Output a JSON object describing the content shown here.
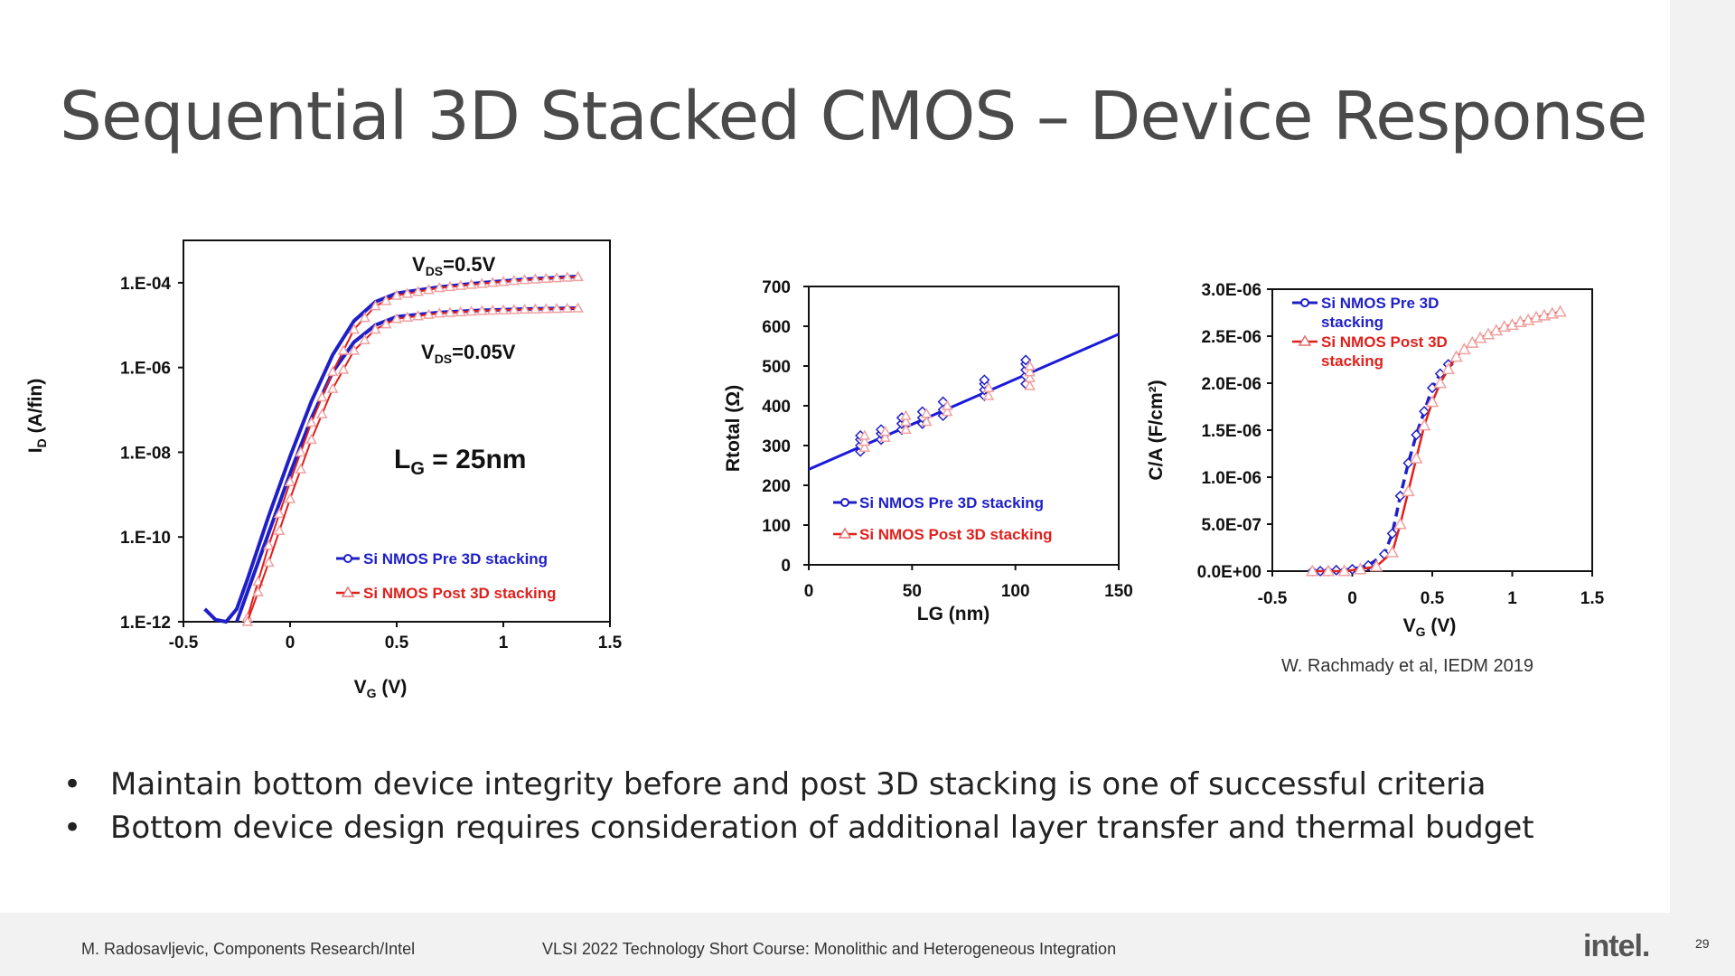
{
  "slide": {
    "title": "Sequential 3D Stacked CMOS – Device Response",
    "citation": "W. Rachmady et al, IEDM 2019",
    "bullets": [
      "Maintain bottom device integrity before and post 3D stacking is one of successful criteria",
      "Bottom device design requires consideration of additional layer transfer and thermal budget"
    ],
    "footer": {
      "author": "M. Radosavljevic, Components Research/Intel",
      "course": "VLSI 2022 Technology Short Course: Monolithic and Heterogeneous Integration",
      "logo": "intel.",
      "page_number": "29"
    },
    "colors": {
      "pre": "#1f1fc8",
      "post": "#e0201c",
      "post_marker": "#f0a0a0"
    }
  },
  "chart_data": [
    {
      "type": "line",
      "xlabel": "VG (V)",
      "ylabel": "ID (A/fin)",
      "x_ticks": [
        "-0.5",
        "0",
        "0.5",
        "1",
        "1.5"
      ],
      "y_ticks": [
        "1.E-12",
        "1.E-10",
        "1.E-08",
        "1.E-06",
        "1.E-04"
      ],
      "xlim": [
        -0.5,
        1.5
      ],
      "ylim_log10": [
        -12,
        -3
      ],
      "y_scale": "log",
      "annotations": {
        "vds_high": "VDS=0.5V",
        "vds_low": "VDS=0.05V",
        "lg": "LG = 25nm"
      },
      "legend": {
        "pre": "Si NMOS Pre 3D stacking",
        "post": "Si NMOS Post 3D stacking",
        "position": "bottom-right"
      },
      "series": [
        {
          "name": "Si NMOS Pre 3D stacking",
          "condition": "VDS=0.5V",
          "x": [
            -0.4,
            -0.35,
            -0.3,
            -0.25,
            -0.2,
            -0.1,
            0,
            0.1,
            0.2,
            0.3,
            0.4,
            0.5,
            0.7,
            0.9,
            1.1,
            1.35
          ],
          "log10_y": [
            -11.7,
            -11.95,
            -12.0,
            -11.7,
            -11.0,
            -9.5,
            -8.1,
            -6.8,
            -5.7,
            -4.9,
            -4.45,
            -4.25,
            -4.1,
            -4.0,
            -3.92,
            -3.85
          ]
        },
        {
          "name": "Si NMOS Pre 3D stacking",
          "condition": "VDS=0.05V",
          "x": [
            -0.25,
            -0.2,
            -0.1,
            0,
            0.1,
            0.2,
            0.3,
            0.4,
            0.5,
            0.7,
            0.9,
            1.1,
            1.35
          ],
          "log10_y": [
            -12.0,
            -11.3,
            -9.9,
            -8.5,
            -7.2,
            -6.1,
            -5.4,
            -5.0,
            -4.8,
            -4.7,
            -4.65,
            -4.62,
            -4.6
          ]
        },
        {
          "name": "Si NMOS Post 3D stacking",
          "condition": "VDS=0.5V",
          "x": [
            -0.2,
            -0.1,
            0,
            0.1,
            0.2,
            0.3,
            0.4,
            0.5,
            0.7,
            0.9,
            1.1,
            1.35
          ],
          "log10_y": [
            -11.9,
            -10.2,
            -8.7,
            -7.3,
            -6.1,
            -5.1,
            -4.55,
            -4.3,
            -4.12,
            -4.02,
            -3.93,
            -3.86
          ]
        },
        {
          "name": "Si NMOS Post 3D stacking",
          "condition": "VDS=0.05V",
          "x": [
            -0.2,
            -0.1,
            0,
            0.1,
            0.2,
            0.3,
            0.4,
            0.5,
            0.7,
            0.9,
            1.1,
            1.35
          ],
          "log10_y": [
            -12.0,
            -10.6,
            -9.1,
            -7.7,
            -6.5,
            -5.6,
            -5.1,
            -4.85,
            -4.72,
            -4.66,
            -4.63,
            -4.6
          ]
        }
      ]
    },
    {
      "type": "scatter",
      "xlabel": "LG (nm)",
      "ylabel": "Rtotal (Ω)",
      "x_ticks": [
        "0",
        "50",
        "100",
        "150"
      ],
      "y_ticks": [
        "0",
        "100",
        "200",
        "300",
        "400",
        "500",
        "600",
        "700"
      ],
      "xlim": [
        0,
        150
      ],
      "ylim": [
        0,
        700
      ],
      "legend": {
        "pre": "Si NMOS Pre 3D stacking",
        "post": "Si NMOS Post 3D stacking",
        "position": "bottom-left"
      },
      "fit_line": {
        "x": [
          0,
          150
        ],
        "y": [
          240,
          580
        ]
      },
      "series": [
        {
          "name": "Si NMOS Pre 3D stacking",
          "x": [
            25,
            25,
            25,
            25,
            35,
            35,
            35,
            45,
            45,
            45,
            55,
            55,
            55,
            65,
            65,
            65,
            85,
            85,
            85,
            85,
            105,
            105,
            105,
            105,
            105
          ],
          "y": [
            285,
            300,
            315,
            325,
            315,
            330,
            340,
            340,
            355,
            370,
            355,
            370,
            385,
            375,
            390,
            410,
            425,
            440,
            455,
            465,
            455,
            475,
            490,
            505,
            515
          ]
        },
        {
          "name": "Si NMOS Post 3D stacking",
          "x": [
            27,
            27,
            27,
            37,
            37,
            47,
            47,
            47,
            57,
            57,
            67,
            67,
            87,
            87,
            107,
            107,
            107,
            107
          ],
          "y": [
            295,
            310,
            325,
            320,
            335,
            340,
            360,
            375,
            360,
            380,
            385,
            400,
            425,
            445,
            450,
            470,
            485,
            500
          ]
        }
      ]
    },
    {
      "type": "line",
      "xlabel": "VG (V)",
      "ylabel": "C/A (F/cm²)",
      "x_ticks": [
        "-0.5",
        "0",
        "0.5",
        "1",
        "1.5"
      ],
      "y_ticks": [
        "0.0E+00",
        "5.0E-07",
        "1.0E-06",
        "1.5E-06",
        "2.0E-06",
        "2.5E-06",
        "3.0E-06"
      ],
      "xlim": [
        -0.5,
        1.5
      ],
      "ylim": [
        0,
        3e-06
      ],
      "legend": {
        "pre_line1": "Si NMOS Pre 3D",
        "pre_line2": "stacking",
        "post_line1": "Si NMOS Post 3D",
        "post_line2": "stacking",
        "position": "top-left"
      },
      "series": [
        {
          "name": "Si NMOS Pre 3D stacking",
          "x": [
            -0.25,
            -0.2,
            -0.15,
            -0.1,
            0,
            0.1,
            0.2,
            0.25,
            0.3,
            0.35,
            0.4,
            0.45,
            0.5,
            0.55,
            0.6
          ],
          "y": [
            0,
            0,
            0,
            1e-08,
            2e-08,
            6e-08,
            1.8e-07,
            4e-07,
            8e-07,
            1.15e-06,
            1.45e-06,
            1.7e-06,
            1.95e-06,
            2.1e-06,
            2.2e-06
          ]
        },
        {
          "name": "Si NMOS Post 3D stacking",
          "x": [
            -0.25,
            -0.15,
            -0.05,
            0.05,
            0.15,
            0.25,
            0.3,
            0.35,
            0.4,
            0.45,
            0.5,
            0.55,
            0.6,
            0.65,
            0.7,
            0.75,
            0.8,
            0.85,
            0.9,
            0.95,
            1.0,
            1.05,
            1.1,
            1.15,
            1.2,
            1.25,
            1.3
          ],
          "y": [
            0,
            0,
            0,
            2e-08,
            5e-08,
            2e-07,
            5e-07,
            8.5e-07,
            1.2e-06,
            1.55e-06,
            1.8e-06,
            2e-06,
            2.15e-06,
            2.28e-06,
            2.36e-06,
            2.43e-06,
            2.48e-06,
            2.52e-06,
            2.56e-06,
            2.6e-06,
            2.62e-06,
            2.65e-06,
            2.67e-06,
            2.7e-06,
            2.72e-06,
            2.74e-06,
            2.76e-06
          ]
        }
      ]
    }
  ]
}
